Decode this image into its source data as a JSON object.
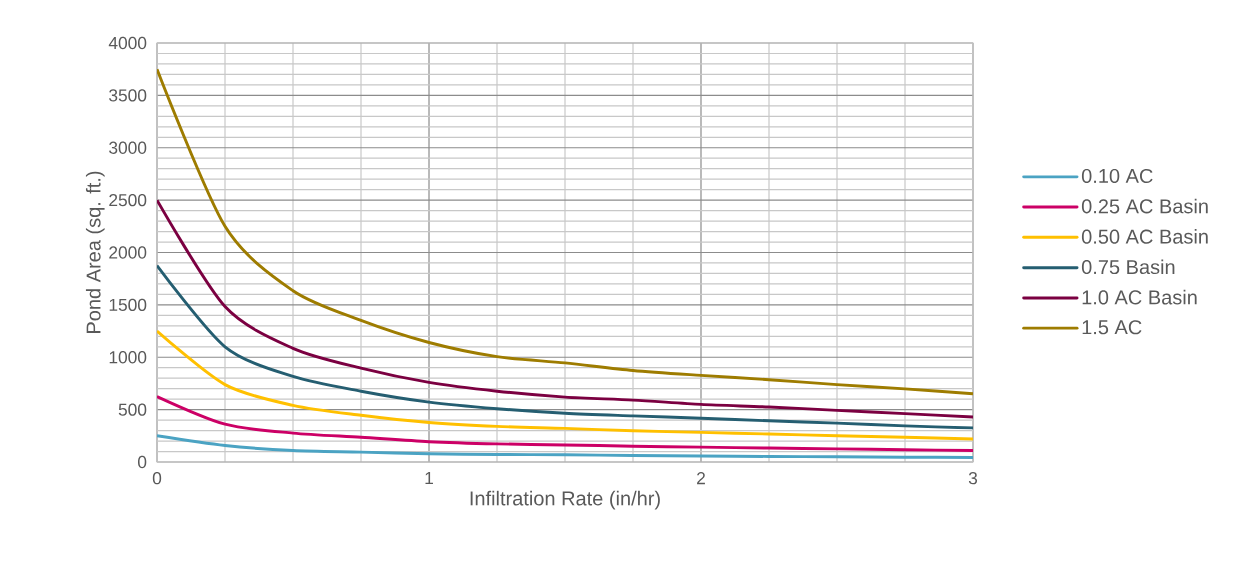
{
  "chart_data": {
    "type": "line",
    "xlabel": "Infiltration Rate (in/hr)",
    "ylabel": "Pond Area (sq. ft.)",
    "x": [
      0,
      0.25,
      0.5,
      0.75,
      1,
      1.25,
      1.5,
      1.75,
      2,
      2.25,
      2.5,
      2.75,
      3
    ],
    "series": [
      {
        "name": "0.10 AC",
        "color": "#4ba3c3",
        "values": [
          250,
          157,
          109,
          94,
          78,
          72,
          69,
          62,
          57,
          53,
          50,
          46,
          43
        ]
      },
      {
        "name": "0.25 AC Basin",
        "color": "#cc0066",
        "values": [
          625,
          361,
          276,
          236,
          194,
          173,
          163,
          151,
          142,
          133,
          125,
          117,
          109
        ]
      },
      {
        "name": "0.50 AC Basin",
        "color": "#ffc000",
        "values": [
          1250,
          739,
          541,
          446,
          377,
          340,
          321,
          298,
          283,
          267,
          251,
          236,
          220
        ]
      },
      {
        "name": "0.75 Basin",
        "color": "#255e71",
        "values": [
          1875,
          1100,
          817,
          676,
          572,
          509,
          465,
          440,
          418,
          393,
          371,
          345,
          324
        ]
      },
      {
        "name": "1.0 AC Basin",
        "color": "#7b0041",
        "values": [
          2500,
          1484,
          1085,
          896,
          760,
          676,
          619,
          591,
          550,
          525,
          493,
          462,
          430
        ]
      },
      {
        "name": "1.5 AC",
        "color": "#9e7c00",
        "values": [
          3750,
          2250,
          1635,
          1352,
          1141,
          1006,
          946,
          874,
          827,
          786,
          739,
          698,
          651
        ]
      }
    ],
    "xlim": [
      0,
      3
    ],
    "ylim": [
      0,
      4000
    ],
    "xticks": [
      0,
      {
        "value": 0.25,
        "label": null
      },
      {
        "value": 0.5,
        "label": null
      },
      {
        "value": 0.75,
        "label": null
      },
      1,
      {
        "value": 1.25,
        "label": null
      },
      {
        "value": 1.5,
        "label": null
      },
      {
        "value": 1.75,
        "label": null
      },
      2,
      {
        "value": 2.25,
        "label": null
      },
      {
        "value": 2.5,
        "label": null
      },
      {
        "value": 2.75,
        "label": null
      },
      3
    ],
    "yticks": [
      0,
      {
        "value": 100,
        "label": null
      },
      {
        "value": 200,
        "label": null
      },
      {
        "value": 300,
        "label": null
      },
      {
        "value": 400,
        "label": null
      },
      500,
      {
        "value": 600,
        "label": null
      },
      {
        "value": 700,
        "label": null
      },
      {
        "value": 800,
        "label": null
      },
      {
        "value": 900,
        "label": null
      },
      1000,
      {
        "value": 1100,
        "label": null
      },
      {
        "value": 1200,
        "label": null
      },
      {
        "value": 1300,
        "label": null
      },
      {
        "value": 1400,
        "label": null
      },
      1500,
      {
        "value": 1600,
        "label": null
      },
      {
        "value": 1700,
        "label": null
      },
      {
        "value": 1800,
        "label": null
      },
      {
        "value": 1900,
        "label": null
      },
      2000,
      {
        "value": 2100,
        "label": null
      },
      {
        "value": 2200,
        "label": null
      },
      {
        "value": 2300,
        "label": null
      },
      {
        "value": 2400,
        "label": null
      },
      2500,
      {
        "value": 2600,
        "label": null
      },
      {
        "value": 2700,
        "label": null
      },
      {
        "value": 2800,
        "label": null
      },
      {
        "value": 2900,
        "label": null
      },
      3000,
      {
        "value": 3100,
        "label": null
      },
      {
        "value": 3200,
        "label": null
      },
      {
        "value": 3300,
        "label": null
      },
      {
        "value": 3400,
        "label": null
      },
      3500,
      {
        "value": 3600,
        "label": null
      },
      {
        "value": 3700,
        "label": null
      },
      {
        "value": 3800,
        "label": null
      },
      {
        "value": 3900,
        "label": null
      },
      4000
    ],
    "grid": true,
    "legend": "right",
    "marker": "none",
    "line_style": "solid"
  }
}
